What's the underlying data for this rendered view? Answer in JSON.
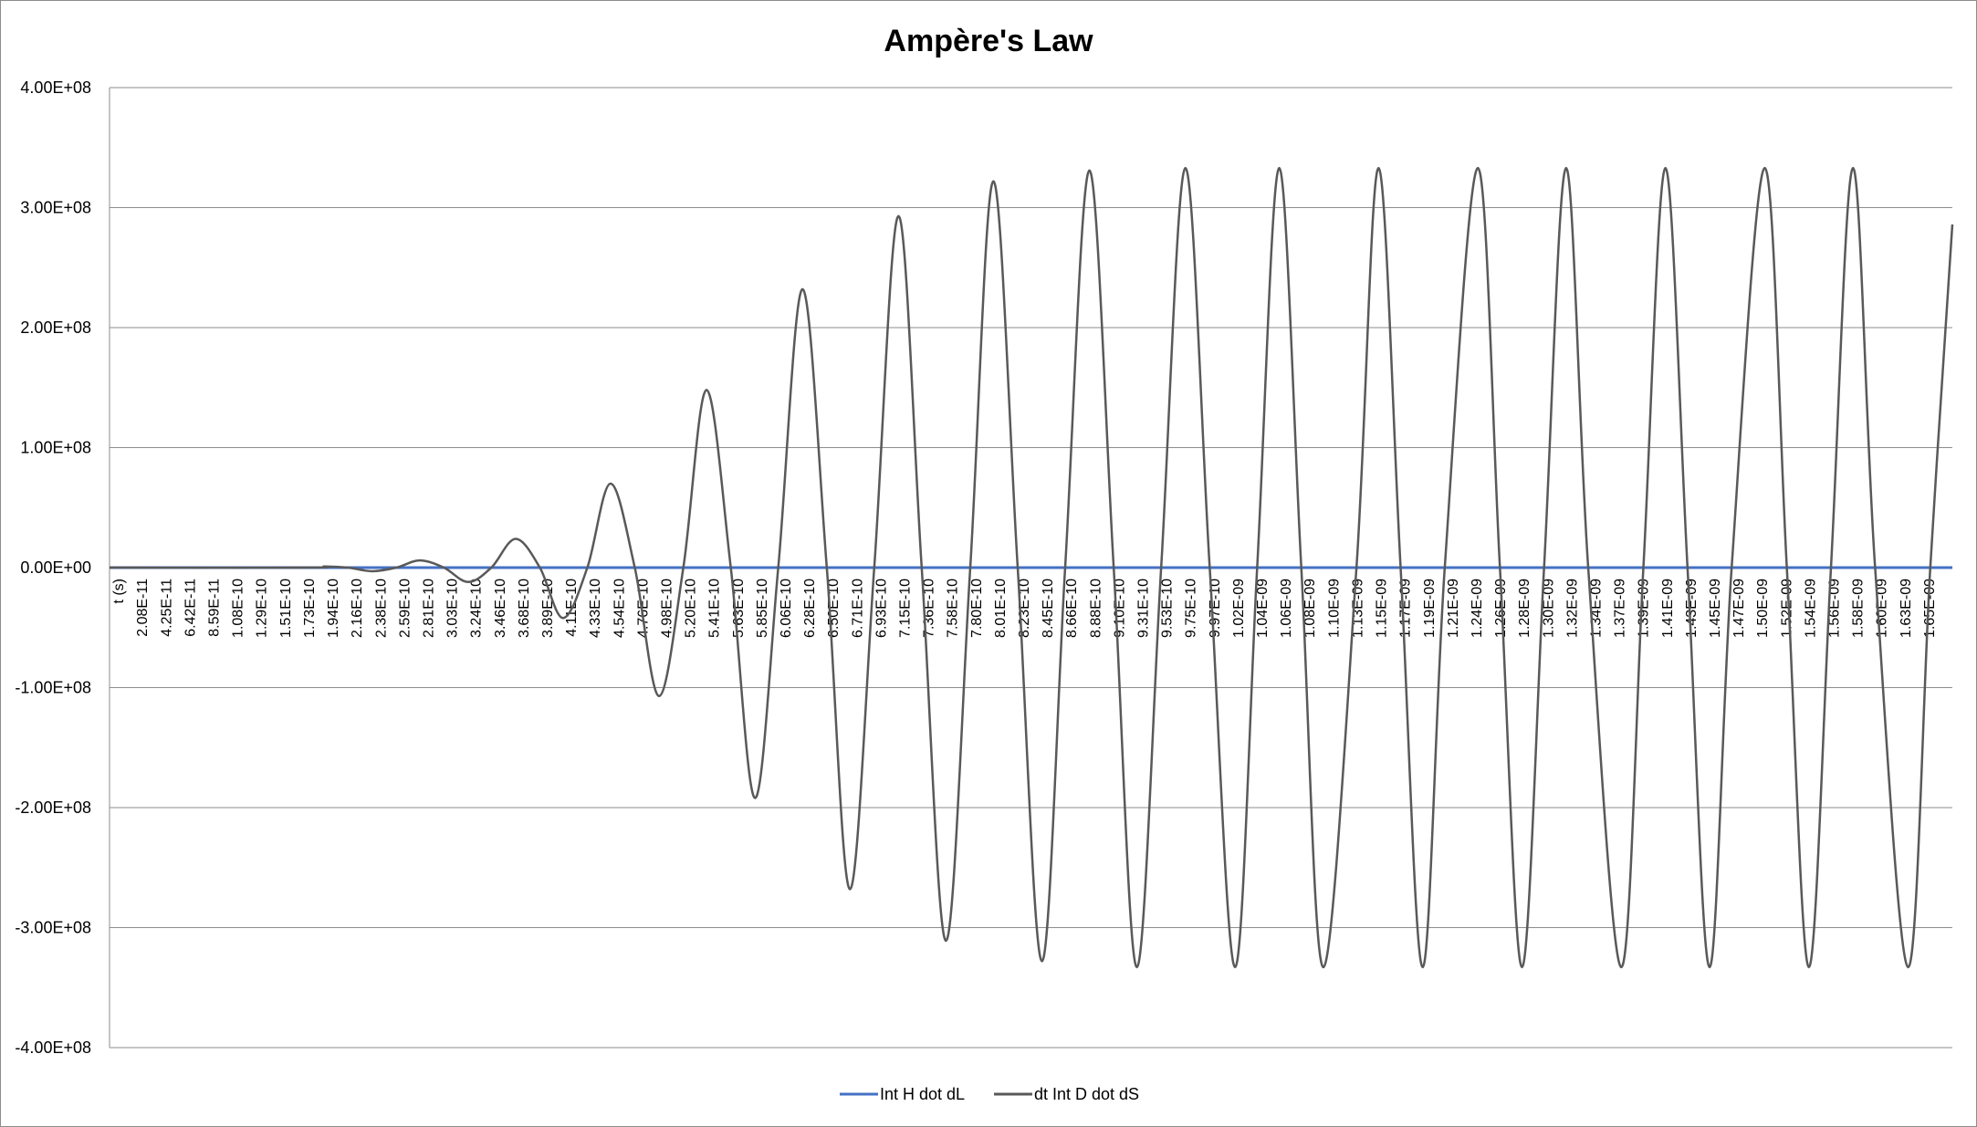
{
  "chart_data": {
    "type": "line",
    "title": "Ampère's Law",
    "xlabel": "",
    "ylabel": "",
    "ylim": [
      -400000000,
      400000000
    ],
    "ytick_labels": [
      "4.00E+08",
      "3.00E+08",
      "2.00E+08",
      "1.00E+08",
      "0.00E+00",
      "-1.00E+08",
      "-2.00E+08",
      "-3.00E+08",
      "-4.00E+08"
    ],
    "ytick_values": [
      400000000,
      300000000,
      200000000,
      100000000,
      0,
      -100000000,
      -200000000,
      -300000000,
      -400000000
    ],
    "xlim": [
      0,
      1.67e-09
    ],
    "x_category_label": "t (s)",
    "xtick_labels": [
      "2.08E-11",
      "4.25E-11",
      "6.42E-11",
      "8.59E-11",
      "1.08E-10",
      "1.29E-10",
      "1.51E-10",
      "1.73E-10",
      "1.94E-10",
      "2.16E-10",
      "2.38E-10",
      "2.59E-10",
      "2.81E-10",
      "3.03E-10",
      "3.24E-10",
      "3.46E-10",
      "3.68E-10",
      "3.89E-10",
      "4.11E-10",
      "4.33E-10",
      "4.54E-10",
      "4.76E-10",
      "4.98E-10",
      "5.20E-10",
      "5.41E-10",
      "5.63E-10",
      "5.85E-10",
      "6.06E-10",
      "6.28E-10",
      "6.50E-10",
      "6.71E-10",
      "6.93E-10",
      "7.15E-10",
      "7.36E-10",
      "7.58E-10",
      "7.80E-10",
      "8.01E-10",
      "8.23E-10",
      "8.45E-10",
      "8.66E-10",
      "8.88E-10",
      "9.10E-10",
      "9.31E-10",
      "9.53E-10",
      "9.75E-10",
      "9.97E-10",
      "1.02E-09",
      "1.04E-09",
      "1.06E-09",
      "1.08E-09",
      "1.10E-09",
      "1.13E-09",
      "1.15E-09",
      "1.17E-09",
      "1.19E-09",
      "1.21E-09",
      "1.24E-09",
      "1.26E-09",
      "1.28E-09",
      "1.30E-09",
      "1.32E-09",
      "1.34E-09",
      "1.37E-09",
      "1.39E-09",
      "1.41E-09",
      "1.43E-09",
      "1.45E-09",
      "1.47E-09",
      "1.50E-09",
      "1.52E-09",
      "1.54E-09",
      "1.56E-09",
      "1.58E-09",
      "1.60E-09",
      "1.63E-09",
      "1.65E-09"
    ],
    "grid": true,
    "legend_position": "bottom",
    "series": [
      {
        "name": "Int H dot dL",
        "color": "#4472c4",
        "x": [
          0,
          1.67e-09
        ],
        "y": [
          0,
          0
        ]
      },
      {
        "name": "dt Int D dot dS",
        "color": "#595959",
        "x": [
          0,
          1.8e-10,
          1.95e-10,
          2.16e-10,
          2.38e-10,
          2.6e-10,
          2.81e-10,
          3.03e-10,
          3.25e-10,
          3.46e-10,
          3.68e-10,
          3.9e-10,
          4.11e-10,
          4.33e-10,
          4.54e-10,
          4.76e-10,
          4.98e-10,
          5.2e-10,
          5.41e-10,
          5.63e-10,
          5.85e-10,
          6.06e-10,
          6.28e-10,
          6.5e-10,
          6.71e-10,
          6.93e-10,
          7.15e-10,
          7.36e-10,
          7.58e-10,
          7.8e-10,
          8.01e-10,
          8.23e-10,
          8.45e-10,
          8.66e-10,
          8.88e-10,
          9.1e-10,
          9.31e-10,
          9.53e-10,
          9.75e-10,
          9.97e-10,
          1.02e-09,
          1.04e-09,
          1.06e-09,
          1.08e-09,
          1.1e-09,
          1.13e-09,
          1.15e-09,
          1.17e-09,
          1.19e-09,
          1.21e-09,
          1.24e-09,
          1.26e-09,
          1.28e-09,
          1.3e-09,
          1.32e-09,
          1.34e-09,
          1.37e-09,
          1.39e-09,
          1.41e-09,
          1.43e-09,
          1.45e-09,
          1.47e-09,
          1.5e-09,
          1.52e-09,
          1.54e-09,
          1.56e-09,
          1.58e-09,
          1.6e-09,
          1.63e-09,
          1.65e-09,
          1.67e-09
        ],
        "y": [
          0,
          0,
          1000000,
          0,
          -3000000,
          0,
          6000000,
          0,
          -12000000,
          0,
          24000000,
          0,
          -42000000,
          0,
          70000000,
          0,
          -107000000,
          0,
          148000000,
          0,
          -192000000,
          0,
          232000000,
          0,
          -268000000,
          0,
          293000000,
          0,
          -311000000,
          0,
          322000000,
          0,
          -328000000,
          0,
          331000000,
          0,
          -333000000,
          0,
          333000000,
          0,
          -333000000,
          0,
          333000000,
          0,
          -333000000,
          0,
          333000000,
          0,
          -333000000,
          0,
          333000000,
          0,
          -333000000,
          0,
          333000000,
          0,
          -333000000,
          0,
          333000000,
          0,
          -333000000,
          0,
          333000000,
          0,
          -333000000,
          0,
          333000000,
          0,
          -333000000,
          0,
          286000000
        ]
      }
    ]
  }
}
